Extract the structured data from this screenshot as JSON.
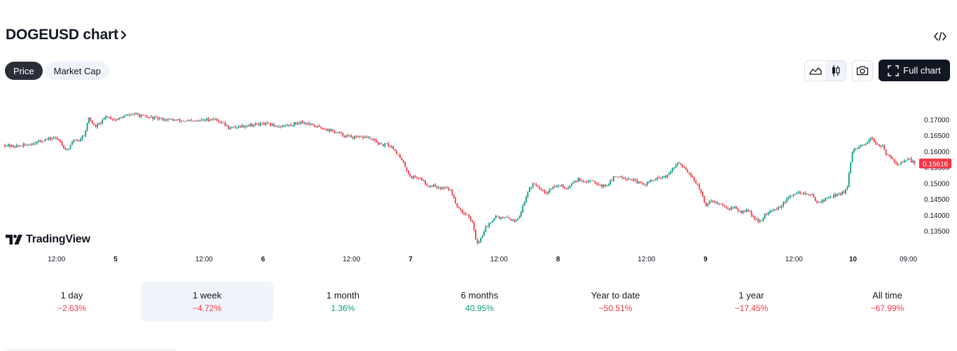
{
  "header": {
    "title": "DOGEUSD chart",
    "chevron_icon": "chevron-right-icon",
    "embed_icon": "code-embed-icon"
  },
  "pills": [
    {
      "label": "Price",
      "active": true
    },
    {
      "label": "Market Cap",
      "active": false
    }
  ],
  "toolbar": {
    "line_style_icon": "area-chart-icon",
    "candle_style_icon": "candlestick-icon",
    "snapshot_icon": "camera-icon",
    "full_chart_icon": "fullscreen-icon",
    "full_chart_label": "Full chart"
  },
  "branding": {
    "logo_text": "TradingView"
  },
  "colors": {
    "up": "#089981",
    "down": "#f23645",
    "text": "#131722",
    "muted_bg": "#f0f3fa",
    "dark": "#131722"
  },
  "chart_data": {
    "type": "candlestick",
    "symbol": "DOGEUSD",
    "y_ticks": [
      "0.17000",
      "0.16500",
      "0.16000",
      "0.15500",
      "0.15000",
      "0.14500",
      "0.14000",
      "0.13500"
    ],
    "ylim": [
      0.1305,
      0.1745
    ],
    "last_price": "0.15616",
    "x_ticks": [
      "12:00",
      "5",
      "12:00",
      "6",
      "12:00",
      "7",
      "12:00",
      "8",
      "12:00",
      "9",
      "12:00",
      "10",
      "09:00"
    ],
    "x_tick_bold": [
      false,
      true,
      false,
      true,
      false,
      true,
      false,
      true,
      false,
      true,
      false,
      true,
      false
    ],
    "x_tick_time": [
      0.1,
      0.5,
      1.1,
      1.5,
      2.1,
      2.5,
      3.1,
      3.5,
      4.1,
      4.5,
      5.1,
      5.5,
      5.875
    ],
    "x_range": [
      -0.25,
      5.92
    ],
    "close_path": [
      [
        -0.25,
        0.162
      ],
      [
        -0.2,
        0.1615
      ],
      [
        -0.12,
        0.1618
      ],
      [
        -0.04,
        0.1628
      ],
      [
        0.02,
        0.1636
      ],
      [
        0.08,
        0.1642
      ],
      [
        0.12,
        0.1635
      ],
      [
        0.16,
        0.1605
      ],
      [
        0.19,
        0.1612
      ],
      [
        0.22,
        0.164
      ],
      [
        0.25,
        0.1632
      ],
      [
        0.29,
        0.1655
      ],
      [
        0.32,
        0.1705
      ],
      [
        0.36,
        0.1675
      ],
      [
        0.4,
        0.169
      ],
      [
        0.44,
        0.171
      ],
      [
        0.5,
        0.1698
      ],
      [
        0.56,
        0.171
      ],
      [
        0.62,
        0.1718
      ],
      [
        0.7,
        0.1708
      ],
      [
        0.8,
        0.1702
      ],
      [
        0.92,
        0.1697
      ],
      [
        1.02,
        0.1693
      ],
      [
        1.1,
        0.1698
      ],
      [
        1.16,
        0.1702
      ],
      [
        1.22,
        0.1692
      ],
      [
        1.27,
        0.1672
      ],
      [
        1.34,
        0.1678
      ],
      [
        1.42,
        0.1683
      ],
      [
        1.52,
        0.1686
      ],
      [
        1.6,
        0.1678
      ],
      [
        1.68,
        0.1682
      ],
      [
        1.76,
        0.1693
      ],
      [
        1.82,
        0.1683
      ],
      [
        1.9,
        0.1673
      ],
      [
        1.98,
        0.1662
      ],
      [
        2.06,
        0.1648
      ],
      [
        2.14,
        0.1642
      ],
      [
        2.2,
        0.1645
      ],
      [
        2.26,
        0.1632
      ],
      [
        2.3,
        0.1618
      ],
      [
        2.34,
        0.1622
      ],
      [
        2.38,
        0.1612
      ],
      [
        2.42,
        0.1585
      ],
      [
        2.46,
        0.1555
      ],
      [
        2.5,
        0.1518
      ],
      [
        2.54,
        0.152
      ],
      [
        2.58,
        0.151
      ],
      [
        2.62,
        0.149
      ],
      [
        2.66,
        0.1495
      ],
      [
        2.7,
        0.148
      ],
      [
        2.74,
        0.149
      ],
      [
        2.78,
        0.1472
      ],
      [
        2.8,
        0.144
      ],
      [
        2.84,
        0.1412
      ],
      [
        2.88,
        0.1405
      ],
      [
        2.92,
        0.1375
      ],
      [
        2.94,
        0.1328
      ],
      [
        2.96,
        0.131
      ],
      [
        3.0,
        0.1352
      ],
      [
        3.04,
        0.1378
      ],
      [
        3.08,
        0.1398
      ],
      [
        3.12,
        0.1388
      ],
      [
        3.16,
        0.1392
      ],
      [
        3.2,
        0.138
      ],
      [
        3.24,
        0.1398
      ],
      [
        3.28,
        0.1452
      ],
      [
        3.3,
        0.1482
      ],
      [
        3.34,
        0.1498
      ],
      [
        3.38,
        0.1485
      ],
      [
        3.42,
        0.147
      ],
      [
        3.46,
        0.1488
      ],
      [
        3.52,
        0.1492
      ],
      [
        3.56,
        0.1482
      ],
      [
        3.6,
        0.1505
      ],
      [
        3.64,
        0.1512
      ],
      [
        3.68,
        0.1498
      ],
      [
        3.72,
        0.1512
      ],
      [
        3.76,
        0.1502
      ],
      [
        3.8,
        0.149
      ],
      [
        3.84,
        0.1498
      ],
      [
        3.88,
        0.1518
      ],
      [
        3.92,
        0.1522
      ],
      [
        3.96,
        0.1515
      ],
      [
        4.0,
        0.1512
      ],
      [
        4.04,
        0.1502
      ],
      [
        4.08,
        0.1495
      ],
      [
        4.12,
        0.1505
      ],
      [
        4.16,
        0.1512
      ],
      [
        4.2,
        0.1518
      ],
      [
        4.24,
        0.152
      ],
      [
        4.28,
        0.1548
      ],
      [
        4.32,
        0.1562
      ],
      [
        4.36,
        0.1548
      ],
      [
        4.4,
        0.1525
      ],
      [
        4.44,
        0.1498
      ],
      [
        4.48,
        0.1458
      ],
      [
        4.5,
        0.143
      ],
      [
        4.54,
        0.1448
      ],
      [
        4.58,
        0.1435
      ],
      [
        4.62,
        0.143
      ],
      [
        4.66,
        0.142
      ],
      [
        4.7,
        0.1425
      ],
      [
        4.74,
        0.1405
      ],
      [
        4.78,
        0.1418
      ],
      [
        4.82,
        0.1398
      ],
      [
        4.86,
        0.1375
      ],
      [
        4.9,
        0.1398
      ],
      [
        4.94,
        0.1412
      ],
      [
        4.98,
        0.1418
      ],
      [
        5.02,
        0.1432
      ],
      [
        5.06,
        0.1452
      ],
      [
        5.1,
        0.1468
      ],
      [
        5.14,
        0.147
      ],
      [
        5.18,
        0.1465
      ],
      [
        5.22,
        0.1462
      ],
      [
        5.26,
        0.144
      ],
      [
        5.3,
        0.1445
      ],
      [
        5.34,
        0.1458
      ],
      [
        5.38,
        0.1462
      ],
      [
        5.42,
        0.1468
      ],
      [
        5.46,
        0.148
      ],
      [
        5.48,
        0.1555
      ],
      [
        5.5,
        0.1605
      ],
      [
        5.54,
        0.1612
      ],
      [
        5.58,
        0.1618
      ],
      [
        5.62,
        0.1638
      ],
      [
        5.66,
        0.1625
      ],
      [
        5.7,
        0.1615
      ],
      [
        5.72,
        0.159
      ],
      [
        5.76,
        0.1582
      ],
      [
        5.8,
        0.1558
      ],
      [
        5.84,
        0.1565
      ],
      [
        5.88,
        0.1575
      ],
      [
        5.92,
        0.1562
      ]
    ]
  },
  "periods": [
    {
      "label": "1 day",
      "value": "−2.63%",
      "sign": "neg",
      "active": false
    },
    {
      "label": "1 week",
      "value": "−4.72%",
      "sign": "neg",
      "active": true
    },
    {
      "label": "1 month",
      "value": "1.36%",
      "sign": "pos",
      "active": false
    },
    {
      "label": "6 months",
      "value": "40.95%",
      "sign": "pos",
      "active": false
    },
    {
      "label": "Year to date",
      "value": "−50.51%",
      "sign": "neg",
      "active": false
    },
    {
      "label": "1 year",
      "value": "−17.45%",
      "sign": "neg",
      "active": false
    },
    {
      "label": "All time",
      "value": "−67.99%",
      "sign": "neg",
      "active": false
    }
  ]
}
